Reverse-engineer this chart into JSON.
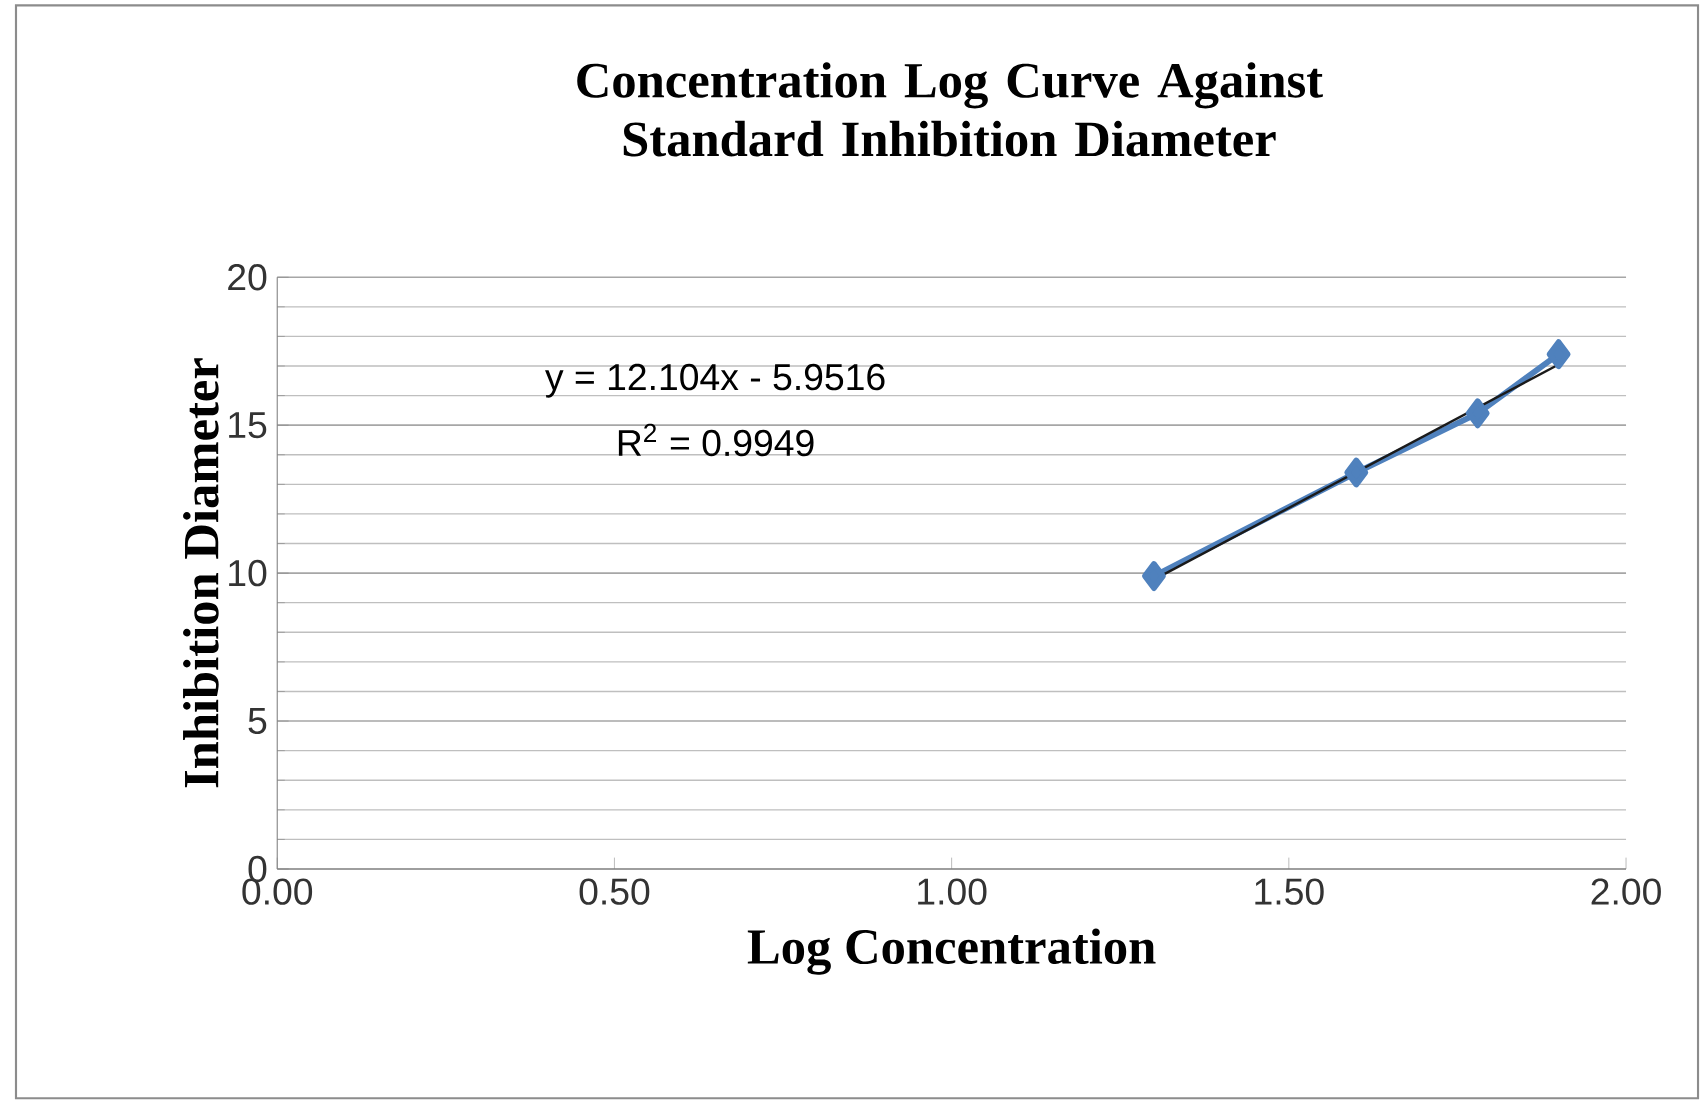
{
  "chart_data": {
    "type": "line",
    "title": "Concentration  Log Curve Against Standard Inhibition Diameter",
    "xlabel": "Log Concentration",
    "ylabel": "Inhibition Diameter",
    "annotations": [
      "y = 12.104x - 5.9516",
      "R$^{2}$ = 0.9949"
    ],
    "series": [
      {
        "color": "#4f81bd",
        "marker": "diamond",
        "x": [
          1.3,
          1.6,
          1.78,
          1.9
        ],
        "values": [
          9.9,
          13.4,
          15.4,
          17.4
        ]
      },
      {
        "color": "#1a1a1a",
        "marker": "none",
        "x": [
          1.3,
          1.9
        ],
        "values": [
          9.78,
          17.05
        ]
      }
    ],
    "xlim": [
      0,
      2
    ],
    "ylim": [
      0,
      20
    ],
    "xticks": [
      {
        "value": 0,
        "label": "0.00"
      },
      {
        "value": 0.5,
        "label": "0.50"
      },
      {
        "value": 1,
        "label": "1.00"
      },
      {
        "value": 1.5,
        "label": "1.50"
      },
      {
        "value": 2,
        "label": "2.00"
      }
    ],
    "yticks": [
      0,
      5,
      10,
      15,
      20
    ],
    "grid": "y",
    "line_style": "solid"
  }
}
